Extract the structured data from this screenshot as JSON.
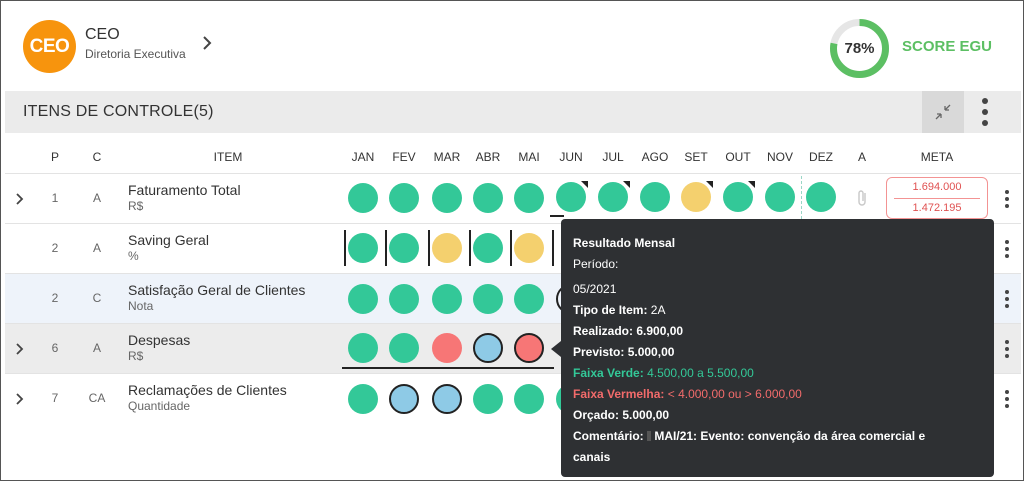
{
  "header": {
    "avatar_text": "CEO",
    "title": "CEO",
    "subtitle": "Diretoria Executiva",
    "score_percent": "78%",
    "score_value": 0.78,
    "score_label": "SCORE EGU"
  },
  "section": {
    "title": "ITENS DE CONTROLE(5)"
  },
  "columns": {
    "p": "P",
    "c": "C",
    "item": "ITEM",
    "months": [
      "JAN",
      "FEV",
      "MAR",
      "ABR",
      "MAI",
      "JUN",
      "JUL",
      "AGO",
      "SET",
      "OUT",
      "NOV",
      "DEZ"
    ],
    "a": "A",
    "meta": "META"
  },
  "rows": [
    {
      "p": "1",
      "c": "A",
      "name": "Faturamento Total",
      "unit": "R$",
      "meta_top": "1.694.000",
      "meta_bottom": "1.472.195"
    },
    {
      "p": "2",
      "c": "A",
      "name": "Saving Geral",
      "unit": "%"
    },
    {
      "p": "2",
      "c": "C",
      "name": "Satisfação Geral de Clientes",
      "unit": "Nota"
    },
    {
      "p": "6",
      "c": "A",
      "name": "Despesas",
      "unit": "R$"
    },
    {
      "p": "7",
      "c": "CA",
      "name": "Reclamações de Clientes",
      "unit": "Quantidade"
    }
  ],
  "tooltip": {
    "title": "Resultado Mensal",
    "period_label": "Período:",
    "period_value": "05/2021",
    "tipo_label": "Tipo de Item:",
    "tipo_value": "2A",
    "realizado_label": "Realizado:",
    "realizado_value": "6.900,00",
    "previsto_label": "Previsto:",
    "previsto_value": "5.000,00",
    "faixa_verde_label": "Faixa Verde:",
    "faixa_verde_value": "4.500,00 a 5.500,00",
    "faixa_vermelha_label": "Faixa Vermelha:",
    "faixa_vermelha_value": "< 4.000,00 ou > 6.000,00",
    "orcado_label": "Orçado:",
    "orcado_value": "5.000,00",
    "comentario_label": "Comentário:",
    "comentario_line1": "MAI/21: Evento: convenção da área comercial e",
    "comentario_line2": "canais"
  },
  "colors": {
    "green": "#33c898",
    "yellow": "#f4d06e",
    "red": "#f77676",
    "blue": "#8ecae6",
    "avatar": "#f7940d",
    "score": "#5cbf63"
  }
}
